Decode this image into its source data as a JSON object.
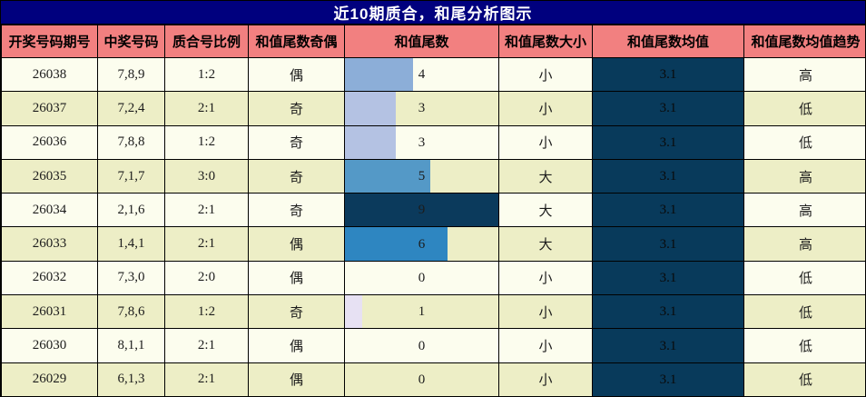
{
  "title": {
    "text": "近10期质合，和尾分析图示"
  },
  "table": {
    "columns": [
      "开奖号码期号",
      "中奖号码",
      "质合号比例",
      "和值尾数奇偶",
      "和值尾数",
      "和值尾数大小",
      "和值尾数均值",
      "和值尾数均值趋势"
    ],
    "rows": [
      {
        "period": "26038",
        "win_numbers": "7,8,9",
        "ratio": "1:2",
        "tail_parity": "偶",
        "tail_value": 4,
        "tail_size": "小",
        "tail_mean": "3.1",
        "mean_trend": "高"
      },
      {
        "period": "26037",
        "win_numbers": "7,2,4",
        "ratio": "2:1",
        "tail_parity": "奇",
        "tail_value": 3,
        "tail_size": "小",
        "tail_mean": "3.1",
        "mean_trend": "低"
      },
      {
        "period": "26036",
        "win_numbers": "7,8,8",
        "ratio": "1:2",
        "tail_parity": "奇",
        "tail_value": 3,
        "tail_size": "小",
        "tail_mean": "3.1",
        "mean_trend": "低"
      },
      {
        "period": "26035",
        "win_numbers": "7,1,7",
        "ratio": "3:0",
        "tail_parity": "奇",
        "tail_value": 5,
        "tail_size": "大",
        "tail_mean": "3.1",
        "mean_trend": "高"
      },
      {
        "period": "26034",
        "win_numbers": "2,1,6",
        "ratio": "2:1",
        "tail_parity": "奇",
        "tail_value": 9,
        "tail_size": "大",
        "tail_mean": "3.1",
        "mean_trend": "高"
      },
      {
        "period": "26033",
        "win_numbers": "1,4,1",
        "ratio": "2:1",
        "tail_parity": "偶",
        "tail_value": 6,
        "tail_size": "大",
        "tail_mean": "3.1",
        "mean_trend": "高"
      },
      {
        "period": "26032",
        "win_numbers": "7,3,0",
        "ratio": "2:0",
        "tail_parity": "偶",
        "tail_value": 0,
        "tail_size": "小",
        "tail_mean": "3.1",
        "mean_trend": "低"
      },
      {
        "period": "26031",
        "win_numbers": "7,8,6",
        "ratio": "1:2",
        "tail_parity": "奇",
        "tail_value": 1,
        "tail_size": "小",
        "tail_mean": "3.1",
        "mean_trend": "低"
      },
      {
        "period": "26030",
        "win_numbers": "8,1,1",
        "ratio": "2:1",
        "tail_parity": "偶",
        "tail_value": 0,
        "tail_size": "小",
        "tail_mean": "3.1",
        "mean_trend": "低"
      },
      {
        "period": "26029",
        "win_numbers": "6,1,3",
        "ratio": "2:1",
        "tail_parity": "偶",
        "tail_value": 0,
        "tail_size": "小",
        "tail_mean": "3.1",
        "mean_trend": "低"
      }
    ]
  },
  "colors": {
    "title_bg": "#00007E",
    "title_text": "#FFFFFF",
    "header_bg": "#F28080",
    "row_bg_odd": "#FCFDEE",
    "row_bg_even": "#EDEEC6",
    "mean_cell_bg": "#083A5B",
    "border": "#000000",
    "bar_colors_by_value": {
      "0": "none",
      "1": "#E7E1F3",
      "3": "#B4C2E3",
      "4": "#8CAED8",
      "5": "#5499C7",
      "6": "#2E86C1",
      "9": "#0B3A5C"
    }
  },
  "chart_data": {
    "type": "table",
    "title": "近10期质合，和尾分析图示",
    "columns": [
      "开奖号码期号",
      "中奖号码",
      "质合号比例",
      "和值尾数奇偶",
      "和值尾数",
      "和值尾数大小",
      "和值尾数均值",
      "和值尾数均值趋势"
    ],
    "embedded_bars": {
      "column": "和值尾数",
      "categories": [
        "26038",
        "26037",
        "26036",
        "26035",
        "26034",
        "26033",
        "26032",
        "26031",
        "26030",
        "26029"
      ],
      "values": [
        4,
        3,
        3,
        5,
        9,
        6,
        0,
        1,
        0,
        0
      ],
      "xmax": 9,
      "style": "in-cell horizontal data bars, color scale light (low) to dark navy (high)"
    },
    "mean_series": {
      "column": "和值尾数均值",
      "values": [
        3.1,
        3.1,
        3.1,
        3.1,
        3.1,
        3.1,
        3.1,
        3.1,
        3.1,
        3.1
      ]
    }
  }
}
